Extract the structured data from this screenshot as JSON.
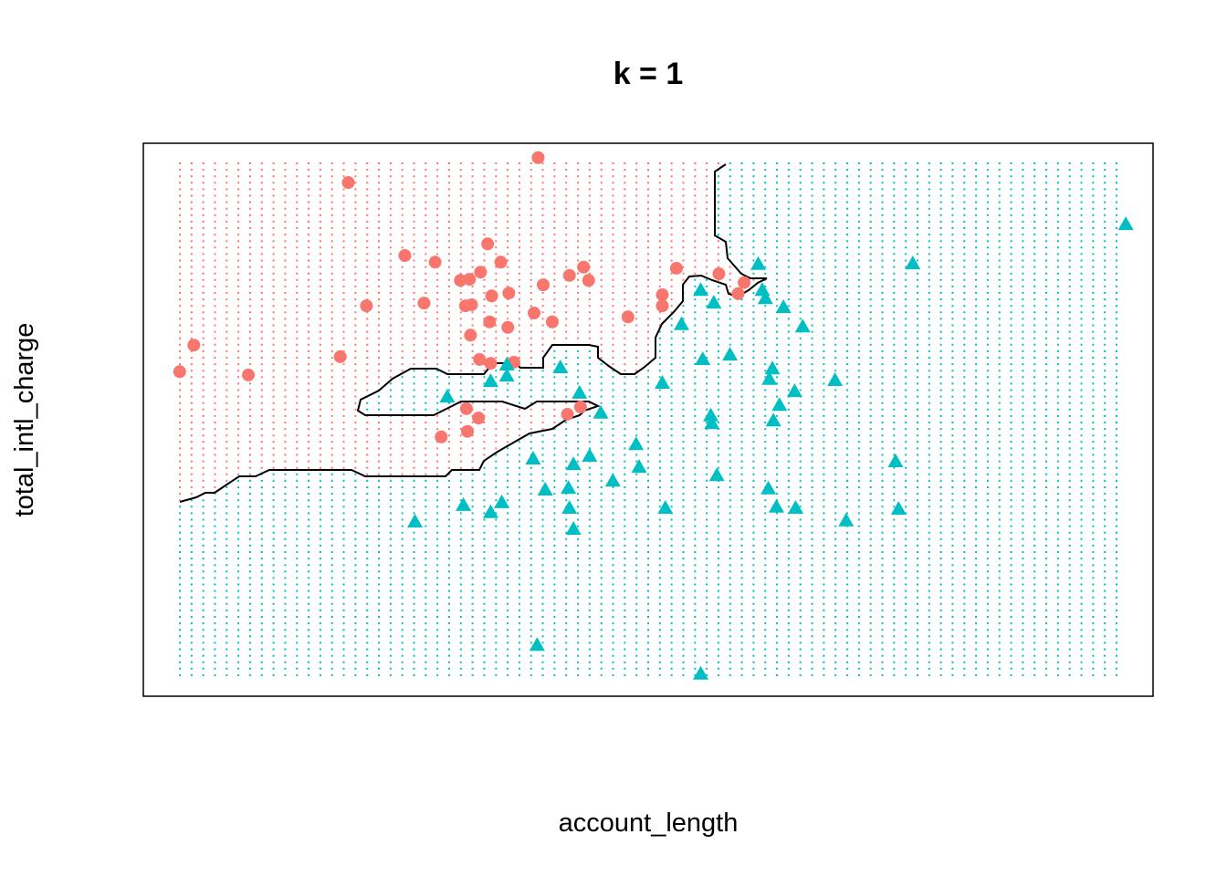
{
  "chart_data": {
    "type": "scatter",
    "title": "k = 1",
    "x_label": "account_length",
    "y_label": "total_intl_charge",
    "xlim": [
      0,
      100
    ],
    "ylim": [
      0,
      100
    ],
    "series": [
      {
        "color": "#F8766D",
        "marker": "circle",
        "x": [
          39.1,
          20.3,
          25.9,
          28.9,
          34.1,
          35.4,
          33.4,
          32.3,
          31.4,
          39.6,
          42.2,
          43.6,
          44.1,
          52.8,
          57.0,
          59.5,
          58.9,
          51.4,
          51.4,
          48.0,
          36.2,
          34.5,
          32.5,
          31.9,
          27.8,
          22.1,
          38.7,
          40.5,
          34.3,
          36.1,
          32.4,
          5.0,
          3.6,
          10.4,
          19.5,
          33.3,
          34.4,
          36.7,
          32.0,
          33.2,
          32.1,
          29.5,
          42.0,
          43.3
        ],
        "y": [
          97.4,
          92.9,
          79.7,
          78.5,
          81.8,
          78.5,
          76.7,
          75.4,
          75.2,
          74.4,
          76.1,
          77.6,
          75.2,
          77.4,
          76.4,
          74.8,
          72.8,
          72.6,
          70.6,
          68.6,
          72.9,
          72.4,
          70.8,
          70.6,
          71.1,
          70.6,
          69.3,
          67.7,
          67.7,
          66.7,
          65.3,
          63.5,
          58.7,
          58.1,
          61.4,
          60.9,
          60.2,
          60.4,
          52.0,
          50.3,
          47.9,
          46.9,
          51.0,
          52.3
        ]
      },
      {
        "color": "#00BFC4",
        "marker": "triangle",
        "x": [
          97.3,
          76.2,
          60.9,
          55.2,
          56.5,
          61.3,
          61.6,
          63.4,
          65.3,
          53.3,
          55.4,
          58.1,
          62.3,
          62.0,
          68.5,
          64.5,
          63.0,
          62.4,
          56.2,
          56.3,
          51.4,
          41.3,
          36.0,
          36.0,
          34.4,
          30.1,
          43.2,
          45.3,
          48.8,
          49.1,
          46.5,
          44.2,
          42.6,
          38.6,
          39.8,
          42.1,
          42.2,
          42.6,
          35.5,
          34.4,
          31.7,
          26.9,
          56.8,
          51.7,
          61.9,
          62.7,
          64.6,
          69.6,
          74.5,
          74.8,
          39.0,
          55.2
        ],
        "y": [
          85.3,
          78.2,
          78.1,
          73.4,
          71.1,
          73.4,
          71.9,
          70.3,
          66.8,
          67.2,
          60.9,
          61.7,
          59.2,
          57.3,
          57.1,
          55.1,
          52.6,
          49.8,
          50.7,
          49.3,
          56.6,
          59.4,
          59.9,
          57.9,
          56.9,
          54.1,
          54.8,
          51.2,
          45.5,
          41.4,
          38.9,
          43.4,
          41.9,
          42.9,
          37.3,
          37.6,
          34.0,
          30.2,
          35.0,
          33.2,
          34.5,
          31.5,
          39.9,
          34.0,
          37.5,
          34.2,
          34.0,
          31.7,
          42.4,
          33.8,
          9.2,
          4.0
        ]
      }
    ]
  }
}
